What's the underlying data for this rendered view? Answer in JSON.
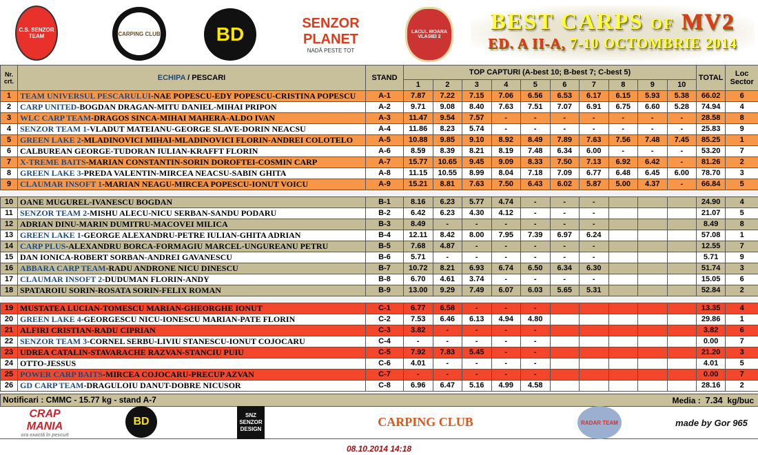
{
  "header": {
    "logos": [
      "C.S. SENZOR TEAM",
      "CARPING CLUB",
      "BD",
      "SENZOR PLANET",
      "NADĂ PESTE TOT",
      "LACUL MOARA VLASIEI 2"
    ],
    "title_line1_a": "BEST CARPS",
    "title_line1_of": "OF",
    "title_line1_b": "MV2",
    "title_line2_a": "ED. A II-A,",
    "title_line2_b": "7-10 OCTOMBRIE 2014"
  },
  "table": {
    "col_nr": "Nr. crt.",
    "col_team_a": "ECHIPA",
    "col_team_b": " / PESCARI",
    "col_stand": "STAND",
    "col_top": "TOP CAPTURI (A-best 10; B-best 7; C-best 5)",
    "col_numbers": [
      "1",
      "2",
      "3",
      "4",
      "5",
      "6",
      "7",
      "8",
      "9",
      "10"
    ],
    "col_total": "TOTAL",
    "col_loc": "Loc Sector",
    "colors": {
      "A": "#f79646",
      "B": "#c4bc96",
      "C": "#f2472a",
      "team_text": "#1f497d"
    },
    "groups": [
      {
        "sector": "A",
        "rows": [
          {
            "nr": "1",
            "team": "TEAM UNIVERSUL PESCARULUI",
            "rest": "-NAE POPESCU-EDY POPESCU-CRISTINA POPESCU",
            "stand": "A-1",
            "scores": [
              "7.87",
              "7.22",
              "7.15",
              "7.06",
              "6.56",
              "6.53",
              "6.17",
              "6.15",
              "5.93",
              "5.38"
            ],
            "total": "66.02",
            "loc": "6"
          },
          {
            "nr": "2",
            "team": "CARP UNITED",
            "rest": "-BOGDAN DRAGAN-MITU DANIEL-MIHAI PRIPON",
            "stand": "A-2",
            "scores": [
              "9.71",
              "9.08",
              "8.40",
              "7.63",
              "7.51",
              "7.07",
              "6.91",
              "6.75",
              "6.60",
              "5.28"
            ],
            "total": "74.94",
            "loc": "4"
          },
          {
            "nr": "3",
            "team": "WLC CARP TEAM",
            "rest": "-DRAGOS SINCA-MIHAI MAHERA-ALDO IVAN",
            "stand": "A-3",
            "scores": [
              "11.47",
              "9.54",
              "7.57",
              "-",
              "-",
              "-",
              "-",
              "-",
              "-",
              "-"
            ],
            "total": "28.58",
            "loc": "8"
          },
          {
            "nr": "4",
            "team": "SENZOR TEAM 1",
            "rest": "-VLADUT MATEIANU-GEORGE SLAVE-DORIN NEACSU",
            "stand": "A-4",
            "scores": [
              "11.86",
              "8.23",
              "5.74",
              "-",
              "-",
              "-",
              "-",
              "-",
              "-",
              "-"
            ],
            "total": "25.83",
            "loc": "9"
          },
          {
            "nr": "5",
            "team": "GREEN LAKE 2",
            "rest": "-MLADINOVICI MIHAI-MLADINOVICI FLORIN-ANDREI COLOTELO",
            "stand": "A-5",
            "scores": [
              "10.88",
              "9.85",
              "9.10",
              "8.92",
              "8.49",
              "7.89",
              "7.63",
              "7.56",
              "7.48",
              "7.45"
            ],
            "total": "85.25",
            "loc": "1"
          },
          {
            "nr": "6",
            "team": "",
            "rest": "CALBUREAN GEORGE-TUDORAN IULIAN-KRAFFT FLORIN",
            "stand": "A-6",
            "scores": [
              "8.59",
              "8.39",
              "8.21",
              "8.19",
              "7.48",
              "6.34",
              "6.00",
              "-",
              "-",
              "-"
            ],
            "total": "53.20",
            "loc": "7"
          },
          {
            "nr": "7",
            "team": "X-TREME BAITS",
            "rest": "-MARIAN CONSTANTIN-SORIN DOROFTEI-COSMIN CARP",
            "stand": "A-7",
            "scores": [
              "15.77",
              "10.65",
              "9.45",
              "9.09",
              "8.33",
              "7.50",
              "7.13",
              "6.92",
              "6.42",
              "-"
            ],
            "total": "81.26",
            "loc": "2"
          },
          {
            "nr": "8",
            "team": "GREEN LAKE 3",
            "rest": "-PREDA VALENTIN-MIRCEA NEACSU-SABIN GHITA",
            "stand": "A-8",
            "scores": [
              "11.15",
              "10.55",
              "8.99",
              "8.04",
              "7.18",
              "7.09",
              "6.77",
              "6.48",
              "6.45",
              "6.00"
            ],
            "total": "78.70",
            "loc": "3"
          },
          {
            "nr": "9",
            "team": "CLAUMAR INSOFT 1",
            "rest": "-MARIAN NEAGU-MIRCEA POPESCU-IONUT VOICU",
            "stand": "A-9",
            "scores": [
              "15.21",
              "8.81",
              "7.63",
              "7.50",
              "6.43",
              "6.02",
              "5.87",
              "5.00",
              "4.37",
              "-"
            ],
            "total": "66.84",
            "loc": "5"
          }
        ]
      },
      {
        "sector": "B",
        "rows": [
          {
            "nr": "10",
            "team": "",
            "rest": "OANE MUGUREL-IVANESCU BOGDAN",
            "stand": "B-1",
            "scores": [
              "8.16",
              "6.23",
              "5.77",
              "4.74",
              "-",
              "-",
              "-",
              "",
              "",
              ""
            ],
            "total": "24.90",
            "loc": "4"
          },
          {
            "nr": "11",
            "team": "SENZOR TEAM 2",
            "rest": "-MISHU ALECU-NICU SERBAN-SANDU PODARU",
            "stand": "B-2",
            "scores": [
              "6.42",
              "6.23",
              "4.30",
              "4.12",
              "-",
              "-",
              "-",
              "",
              "",
              ""
            ],
            "total": "21.07",
            "loc": "5"
          },
          {
            "nr": "12",
            "team": "",
            "rest": "ADRIAN DINU-MARIN DUMITRU-MACOVEI  MILICA",
            "stand": "B-3",
            "scores": [
              "8.49",
              "-",
              "-",
              "-",
              "-",
              "-",
              "-",
              "",
              "",
              ""
            ],
            "total": "8.49",
            "loc": "8"
          },
          {
            "nr": "13",
            "team": "GREEN LAKE 1",
            "rest": "-GEORGE ALEXANDRU-PETRE IULIAN-GHITA ADRIAN",
            "stand": "B-4",
            "scores": [
              "12.11",
              "8.42",
              "8.00",
              "7.95",
              "7.39",
              "6.97",
              "6.24",
              "",
              "",
              ""
            ],
            "total": "57.08",
            "loc": "1"
          },
          {
            "nr": "14",
            "team": "CARP PLUS",
            "rest": "-ALEXANDRU BORCA-FORMAGIU MARCEL-UNGUREANU PETRU",
            "stand": "B-5",
            "scores": [
              "7.68",
              "4.87",
              "-",
              "-",
              "-",
              "-",
              "-",
              "",
              "",
              ""
            ],
            "total": "12.55",
            "loc": "7"
          },
          {
            "nr": "15",
            "team": "",
            "rest": "DAN IONICA-ROBERT SORBAN-ANDREI GAVANESCU",
            "stand": "B-6",
            "scores": [
              "5.71",
              "-",
              "-",
              "-",
              "-",
              "-",
              "-",
              "",
              "",
              ""
            ],
            "total": "5.71",
            "loc": "9"
          },
          {
            "nr": "16",
            "team": "ABBARA CARP TEAM",
            "rest": "-RADU ANDRONE NICU DINESCU",
            "stand": "B-7",
            "scores": [
              "10.72",
              "8.21",
              "6.93",
              "6.74",
              "6.50",
              "6.34",
              "6.30",
              "",
              "",
              ""
            ],
            "total": "51.74",
            "loc": "3"
          },
          {
            "nr": "17",
            "team": "CLAUMAR INSOFT 2",
            "rest": "-DUDUMAN FLORIN-ANDY",
            "stand": "B-8",
            "scores": [
              "6.70",
              "4.61",
              "3.74",
              "-",
              "-",
              "-",
              "-",
              "",
              "",
              ""
            ],
            "total": "15.05",
            "loc": "6"
          },
          {
            "nr": "18",
            "team": "",
            "rest": "SPATAROIU SORIN-ROSATA SORIN-FELIX ROMAN",
            "stand": "B-9",
            "scores": [
              "13.00",
              "9.29",
              "7.49",
              "6.07",
              "6.03",
              "5.65",
              "5.31",
              "",
              "",
              ""
            ],
            "total": "52.84",
            "loc": "2"
          }
        ]
      },
      {
        "sector": "C",
        "rows": [
          {
            "nr": "19",
            "team": "",
            "rest": "MUSTATEA LUCIAN-TOMESCU MARIAN-GHEORGHE IONUT",
            "stand": "C-1",
            "scores": [
              "6.77",
              "6.58",
              "-",
              "-",
              "-",
              "",
              "",
              "",
              "",
              ""
            ],
            "total": "13.35",
            "loc": "4"
          },
          {
            "nr": "20",
            "team": "GREEN LAKE 4",
            "rest": "-GEORGESCU NICU-IONESCU MARIAN-PATE FLORIN",
            "stand": "C-2",
            "scores": [
              "7.53",
              "6.46",
              "6.13",
              "4.94",
              "4.80",
              "",
              "",
              "",
              "",
              ""
            ],
            "total": "29.86",
            "loc": "1"
          },
          {
            "nr": "21",
            "team": "",
            "rest": "ALFIRI CRISTIAN-RADU CIPRIAN",
            "stand": "C-3",
            "scores": [
              "3.82",
              "-",
              "-",
              "-",
              "-",
              "",
              "",
              "",
              "",
              ""
            ],
            "total": "3.82",
            "loc": "6"
          },
          {
            "nr": "22",
            "team": "SENZOR TEAM 3",
            "rest": "-CORNEL SERBU-LIVIU STANESCU-IONUT COJOCARU",
            "stand": "C-4",
            "scores": [
              "-",
              "-",
              "-",
              "-",
              "-",
              "",
              "",
              "",
              "",
              ""
            ],
            "total": "0.00",
            "loc": "7"
          },
          {
            "nr": "23",
            "team": "",
            "rest": "UDREA CATALIN-STAVARACHE RAZVAN-STANCIU PUIU",
            "stand": "C-5",
            "scores": [
              "7.92",
              "7.83",
              "5.45",
              "-",
              "-",
              "",
              "",
              "",
              "",
              ""
            ],
            "total": "21.20",
            "loc": "3"
          },
          {
            "nr": "24",
            "team": "",
            "rest": "OTTO-JESSUS",
            "stand": "C-6",
            "scores": [
              "4.01",
              "-",
              "-",
              "-",
              "-",
              "",
              "",
              "",
              "",
              ""
            ],
            "total": "4.01",
            "loc": "5"
          },
          {
            "nr": "25",
            "team": "POWER CARP BAITS",
            "rest": "-MIRCEA COJOCARU-PRECUP AZVAN",
            "stand": "C-7",
            "scores": [
              "-",
              "-",
              "-",
              "-",
              "-",
              "",
              "",
              "",
              "",
              ""
            ],
            "total": "0.00",
            "loc": "7"
          },
          {
            "nr": "26",
            "team": "GD CARP TEAM",
            "rest": "-DRAGULOIU DANUT-DOBRE NICUSOR",
            "stand": "C-8",
            "scores": [
              "6.96",
              "6.47",
              "5.16",
              "4.99",
              "4.58",
              "",
              "",
              "",
              "",
              ""
            ],
            "total": "28.16",
            "loc": "2"
          }
        ]
      }
    ]
  },
  "footer": {
    "notificari": "Notificari : CMMC -  15.77 kg - stand A-7",
    "media_label": "Media :",
    "media_value": "7.34",
    "media_unit": "kg/buc",
    "logos": [
      "CRAP MANIA",
      "ora exactă în pescuit",
      "BD",
      "SNZ SENZOR DESIGN",
      "CARPING CLUB",
      "RADAR TEAM",
      "made by Gor 965"
    ],
    "timestamp": "08.10.2014 14:18"
  }
}
